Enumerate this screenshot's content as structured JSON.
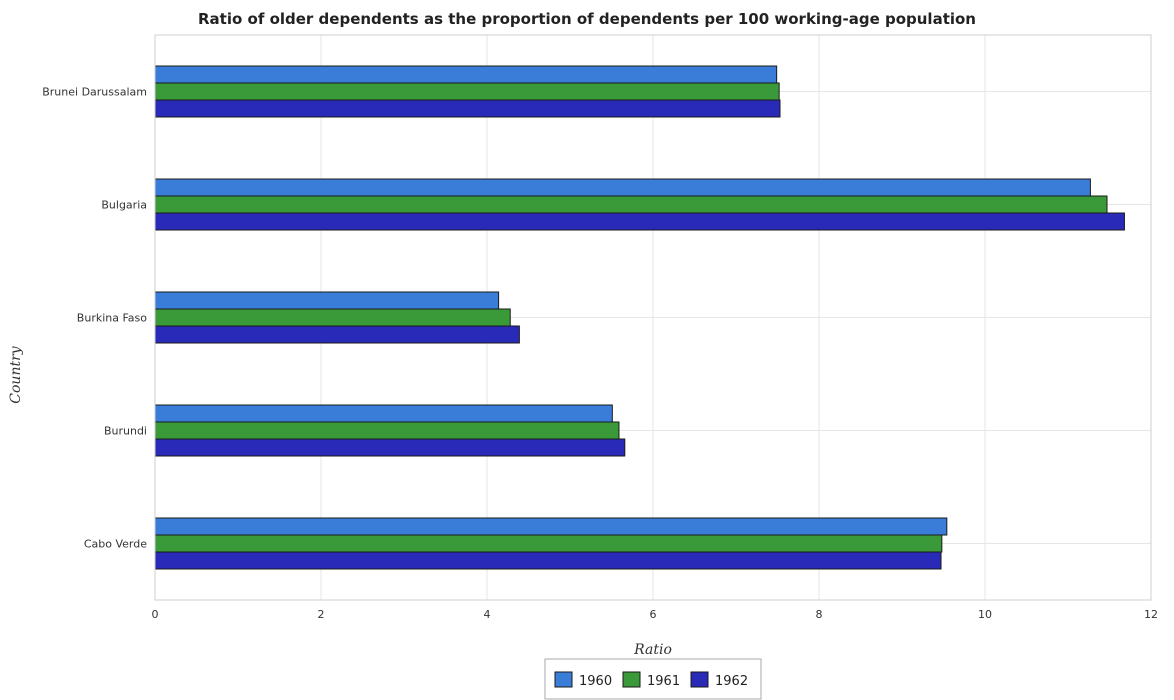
{
  "chart_data": {
    "type": "bar",
    "orientation": "horizontal",
    "title": "Ratio of older dependents as the proportion of dependents per 100 working-age population",
    "xlabel": "Ratio",
    "ylabel": "Country",
    "xlim": [
      0,
      12
    ],
    "xticks": [
      0,
      2,
      4,
      6,
      8,
      10,
      12
    ],
    "grid": true,
    "legend_position": "bottom-center",
    "categories": [
      "Brunei Darussalam",
      "Bulgaria",
      "Burkina Faso",
      "Burundi",
      "Cabo Verde"
    ],
    "series": [
      {
        "name": "1960",
        "color": "#3a7dd8",
        "values": [
          7.49,
          11.27,
          4.14,
          5.51,
          9.54
        ]
      },
      {
        "name": "1961",
        "color": "#3a9a3a",
        "values": [
          7.52,
          11.47,
          4.28,
          5.59,
          9.48
        ]
      },
      {
        "name": "1962",
        "color": "#2a2ab8",
        "values": [
          7.53,
          11.68,
          4.39,
          5.66,
          9.47
        ]
      }
    ]
  }
}
